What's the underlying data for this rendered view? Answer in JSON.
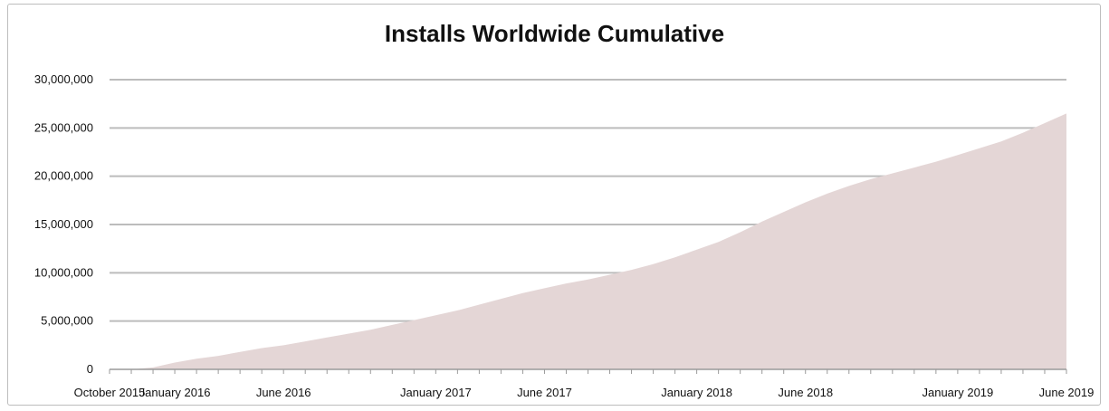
{
  "chart_data": {
    "type": "area",
    "title": "Installs Worldwide Cumulative",
    "xlabel": "",
    "ylabel": "",
    "ylim": [
      0,
      30000000
    ],
    "yticks": [
      {
        "value": 0,
        "label": "0"
      },
      {
        "value": 5000000,
        "label": "5,000,000"
      },
      {
        "value": 10000000,
        "label": "10,000,000"
      },
      {
        "value": 15000000,
        "label": "15,000,000"
      },
      {
        "value": 20000000,
        "label": "20,000,000"
      },
      {
        "value": 25000000,
        "label": "25,000,000"
      },
      {
        "value": 30000000,
        "label": "30,000,000"
      }
    ],
    "xticks": [
      "October 2015",
      "January 2016",
      "June 2016",
      "January 2017",
      "June 2017",
      "January 2018",
      "June 2018",
      "January 2019",
      "June 2019"
    ],
    "grid": true,
    "color": "#e4d6d6",
    "x": [
      "2015-10",
      "2015-11",
      "2015-12",
      "2016-01",
      "2016-02",
      "2016-03",
      "2016-04",
      "2016-05",
      "2016-06",
      "2016-07",
      "2016-08",
      "2016-09",
      "2016-10",
      "2016-11",
      "2016-12",
      "2017-01",
      "2017-02",
      "2017-03",
      "2017-04",
      "2017-05",
      "2017-06",
      "2017-07",
      "2017-08",
      "2017-09",
      "2017-10",
      "2017-11",
      "2017-12",
      "2018-01",
      "2018-02",
      "2018-03",
      "2018-04",
      "2018-05",
      "2018-06",
      "2018-07",
      "2018-08",
      "2018-09",
      "2018-10",
      "2018-11",
      "2018-12",
      "2019-01",
      "2019-02",
      "2019-03",
      "2019-04",
      "2019-05",
      "2019-06"
    ],
    "values": [
      0,
      0,
      200000,
      700000,
      1100000,
      1400000,
      1800000,
      2200000,
      2500000,
      2900000,
      3300000,
      3700000,
      4100000,
      4600000,
      5100000,
      5600000,
      6100000,
      6700000,
      7300000,
      7900000,
      8400000,
      8900000,
      9300000,
      9800000,
      10300000,
      10900000,
      11600000,
      12400000,
      13200000,
      14200000,
      15300000,
      16300000,
      17300000,
      18200000,
      19000000,
      19700000,
      20300000,
      20900000,
      21500000,
      22200000,
      22900000,
      23600000,
      24500000,
      25500000,
      26500000
    ]
  }
}
